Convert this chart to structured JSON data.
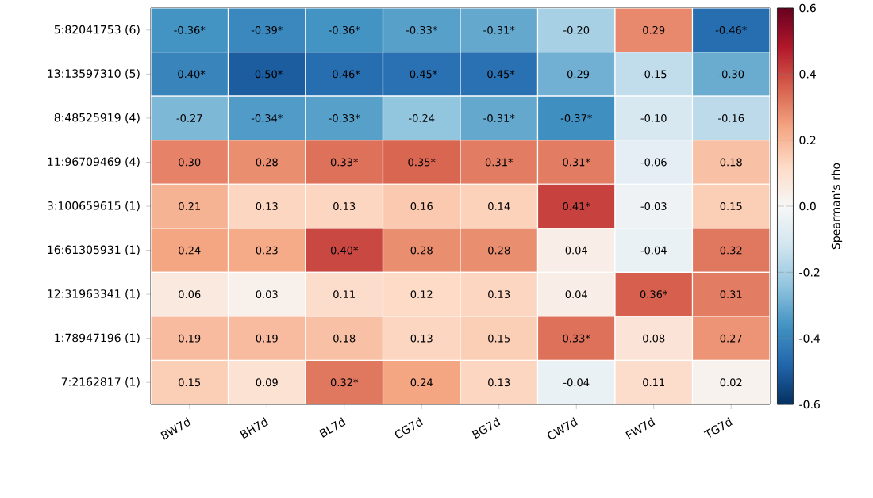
{
  "chart_data": {
    "type": "heatmap",
    "categories": [
      "BW7d",
      "BH7d",
      "BL7d",
      "CG7d",
      "BG7d",
      "CW7d",
      "FW7d",
      "TG7d"
    ],
    "y_categories": [
      "5:82041753 (6)",
      "13:13597310 (5)",
      "8:48525919 (4)",
      "11:96709469 (4)",
      "3:100659615 (1)",
      "16:61305931 (1)",
      "12:31963341 (1)",
      "1:78947196 (1)",
      "7:2162817 (1)"
    ],
    "cells": [
      [
        -0.36,
        -0.39,
        -0.36,
        -0.33,
        -0.31,
        -0.2,
        0.29,
        -0.46
      ],
      [
        -0.4,
        -0.5,
        -0.46,
        -0.45,
        -0.45,
        -0.29,
        -0.15,
        -0.3
      ],
      [
        -0.27,
        -0.34,
        -0.33,
        -0.24,
        -0.31,
        -0.37,
        -0.1,
        -0.16
      ],
      [
        0.3,
        0.28,
        0.33,
        0.35,
        0.31,
        0.31,
        -0.06,
        0.18
      ],
      [
        0.21,
        0.13,
        0.13,
        0.16,
        0.14,
        0.41,
        -0.03,
        0.15
      ],
      [
        0.24,
        0.23,
        0.4,
        0.28,
        0.28,
        0.04,
        -0.04,
        0.32
      ],
      [
        0.06,
        0.03,
        0.11,
        0.12,
        0.13,
        0.04,
        0.36,
        0.31
      ],
      [
        0.19,
        0.19,
        0.18,
        0.13,
        0.15,
        0.33,
        0.08,
        0.27
      ],
      [
        0.15,
        0.09,
        0.32,
        0.24,
        0.13,
        -0.04,
        0.11,
        0.02
      ]
    ],
    "cell_labels": [
      [
        "-0.36*",
        "-0.39*",
        "-0.36*",
        "-0.33*",
        "-0.31*",
        "-0.20",
        "0.29",
        "-0.46*"
      ],
      [
        "-0.40*",
        "-0.50*",
        "-0.46*",
        "-0.45*",
        "-0.45*",
        "-0.29",
        "-0.15",
        "-0.30"
      ],
      [
        "-0.27",
        "-0.34*",
        "-0.33*",
        "-0.24",
        "-0.31*",
        "-0.37*",
        "-0.10",
        "-0.16"
      ],
      [
        "0.30",
        "0.28",
        "0.33*",
        "0.35*",
        "0.31*",
        "0.31*",
        "-0.06",
        "0.18"
      ],
      [
        "0.21",
        "0.13",
        "0.13",
        "0.16",
        "0.14",
        "0.41*",
        "-0.03",
        "0.15"
      ],
      [
        "0.24",
        "0.23",
        "0.40*",
        "0.28",
        "0.28",
        "0.04",
        "-0.04",
        "0.32"
      ],
      [
        "0.06",
        "0.03",
        "0.11",
        "0.12",
        "0.13",
        "0.04",
        "0.36*",
        "0.31"
      ],
      [
        "0.19",
        "0.19",
        "0.18",
        "0.13",
        "0.15",
        "0.33*",
        "0.08",
        "0.27"
      ],
      [
        "0.15",
        "0.09",
        "0.32*",
        "0.24",
        "0.13",
        "-0.04",
        "0.11",
        "0.02"
      ]
    ],
    "clim": [
      -0.6,
      0.6
    ],
    "cticks": [
      -0.6,
      -0.4,
      -0.2,
      {
        "value": 0,
        "label": "0.0"
      },
      0.2,
      0.4,
      0.6
    ],
    "clabel": "Spearman's rho"
  }
}
